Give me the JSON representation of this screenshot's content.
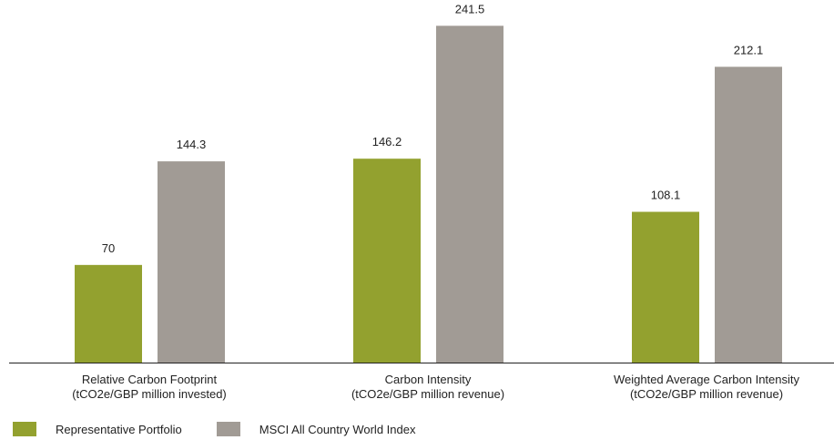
{
  "colors": {
    "portfolio": "#93a12f",
    "index": "#a19b95",
    "axis": "#222222",
    "text": "#222222"
  },
  "legend": {
    "items": [
      {
        "label": "Representative Portfolio",
        "color": "#93a12f"
      },
      {
        "label": "MSCI All Country World Index",
        "color": "#a19b95"
      }
    ]
  },
  "chart_data": {
    "type": "bar",
    "categories": [
      [
        "Relative Carbon Footprint",
        "(tCO2e/GBP million invested)"
      ],
      [
        "Carbon Intensity",
        "(tCO2e/GBP million revenue)"
      ],
      [
        "Weighted Average Carbon Intensity",
        "(tCO2e/GBP million revenue)"
      ]
    ],
    "series": [
      {
        "name": "Representative Portfolio",
        "values": [
          70,
          146.2,
          108.1
        ],
        "labels": [
          "70",
          "146.2",
          "108.1"
        ]
      },
      {
        "name": "MSCI All Country World Index",
        "values": [
          144.3,
          241.5,
          212.1
        ],
        "labels": [
          "144.3",
          "241.5",
          "212.1"
        ]
      }
    ],
    "ylim": [
      0,
      260
    ],
    "grid": false,
    "legend_position": "bottom-left"
  }
}
